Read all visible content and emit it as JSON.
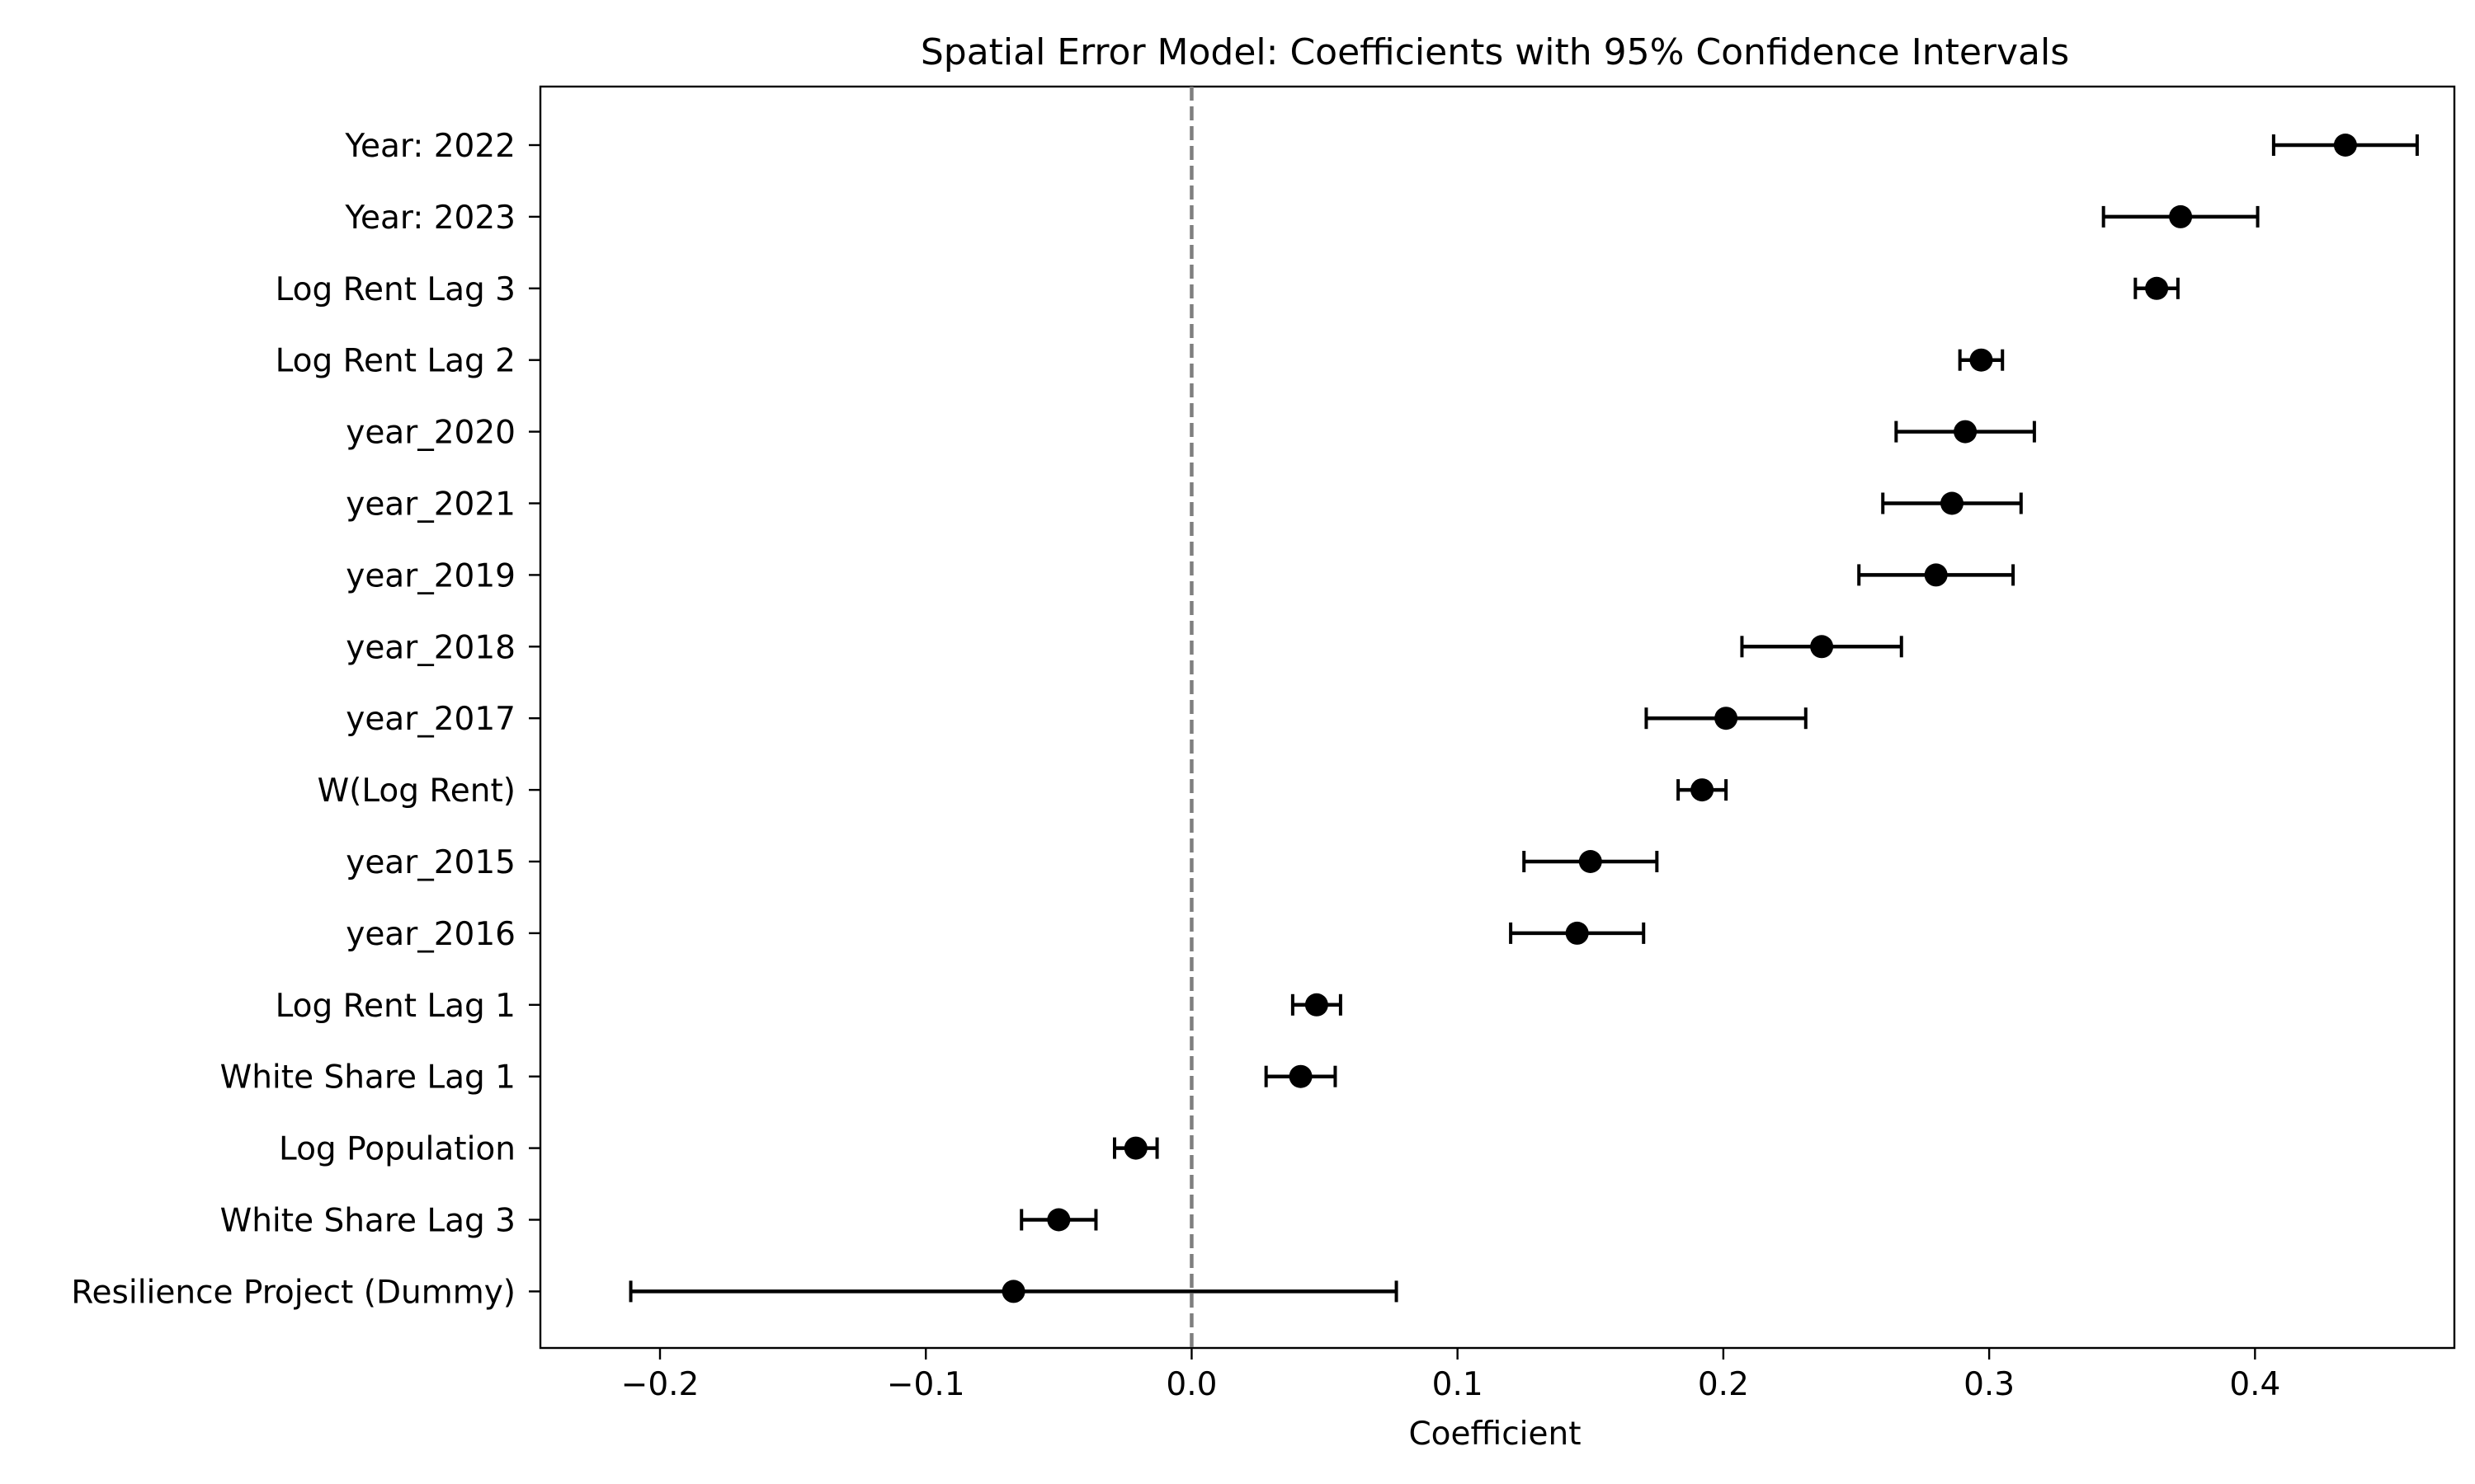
{
  "chart_data": {
    "type": "scatter",
    "title": "Spatial Error Model: Coefficients with 95% Confidence Intervals",
    "xlabel": "Coefficient",
    "ylabel": "",
    "xlim": [
      -0.245,
      0.475
    ],
    "x_ticks": [
      -0.2,
      -0.1,
      0.0,
      0.1,
      0.2,
      0.3,
      0.4
    ],
    "x_tick_labels": [
      "−0.2",
      "−0.1",
      "0.0",
      "0.1",
      "0.2",
      "0.3",
      "0.4"
    ],
    "reference_line": 0.0,
    "grid": false,
    "marker_color": "#000000",
    "reference_line_color": "#7f7f7f",
    "series": [
      {
        "categories": [
          "Year: 2022",
          "Year: 2023",
          "Log Rent Lag 3",
          "Log Rent Lag 2",
          "year_2020",
          "year_2021",
          "year_2019",
          "year_2018",
          "year_2017",
          "W(Log Rent)",
          "year_2015",
          "year_2016",
          "Log Rent Lag 1",
          "White Share Lag 1",
          "Log Population",
          "White Share Lag 3",
          "Resilience Project (Dummy)"
        ],
        "coef": [
          0.434,
          0.372,
          0.363,
          0.297,
          0.291,
          0.286,
          0.28,
          0.237,
          0.201,
          0.192,
          0.15,
          0.145,
          0.047,
          0.041,
          -0.021,
          -0.05,
          -0.067
        ],
        "lower": [
          0.407,
          0.343,
          0.355,
          0.289,
          0.265,
          0.26,
          0.251,
          0.207,
          0.171,
          0.183,
          0.125,
          0.12,
          0.038,
          0.028,
          -0.029,
          -0.064,
          -0.211
        ],
        "upper": [
          0.461,
          0.401,
          0.371,
          0.305,
          0.317,
          0.312,
          0.309,
          0.267,
          0.231,
          0.201,
          0.175,
          0.17,
          0.056,
          0.054,
          -0.013,
          -0.036,
          0.077
        ]
      }
    ]
  }
}
